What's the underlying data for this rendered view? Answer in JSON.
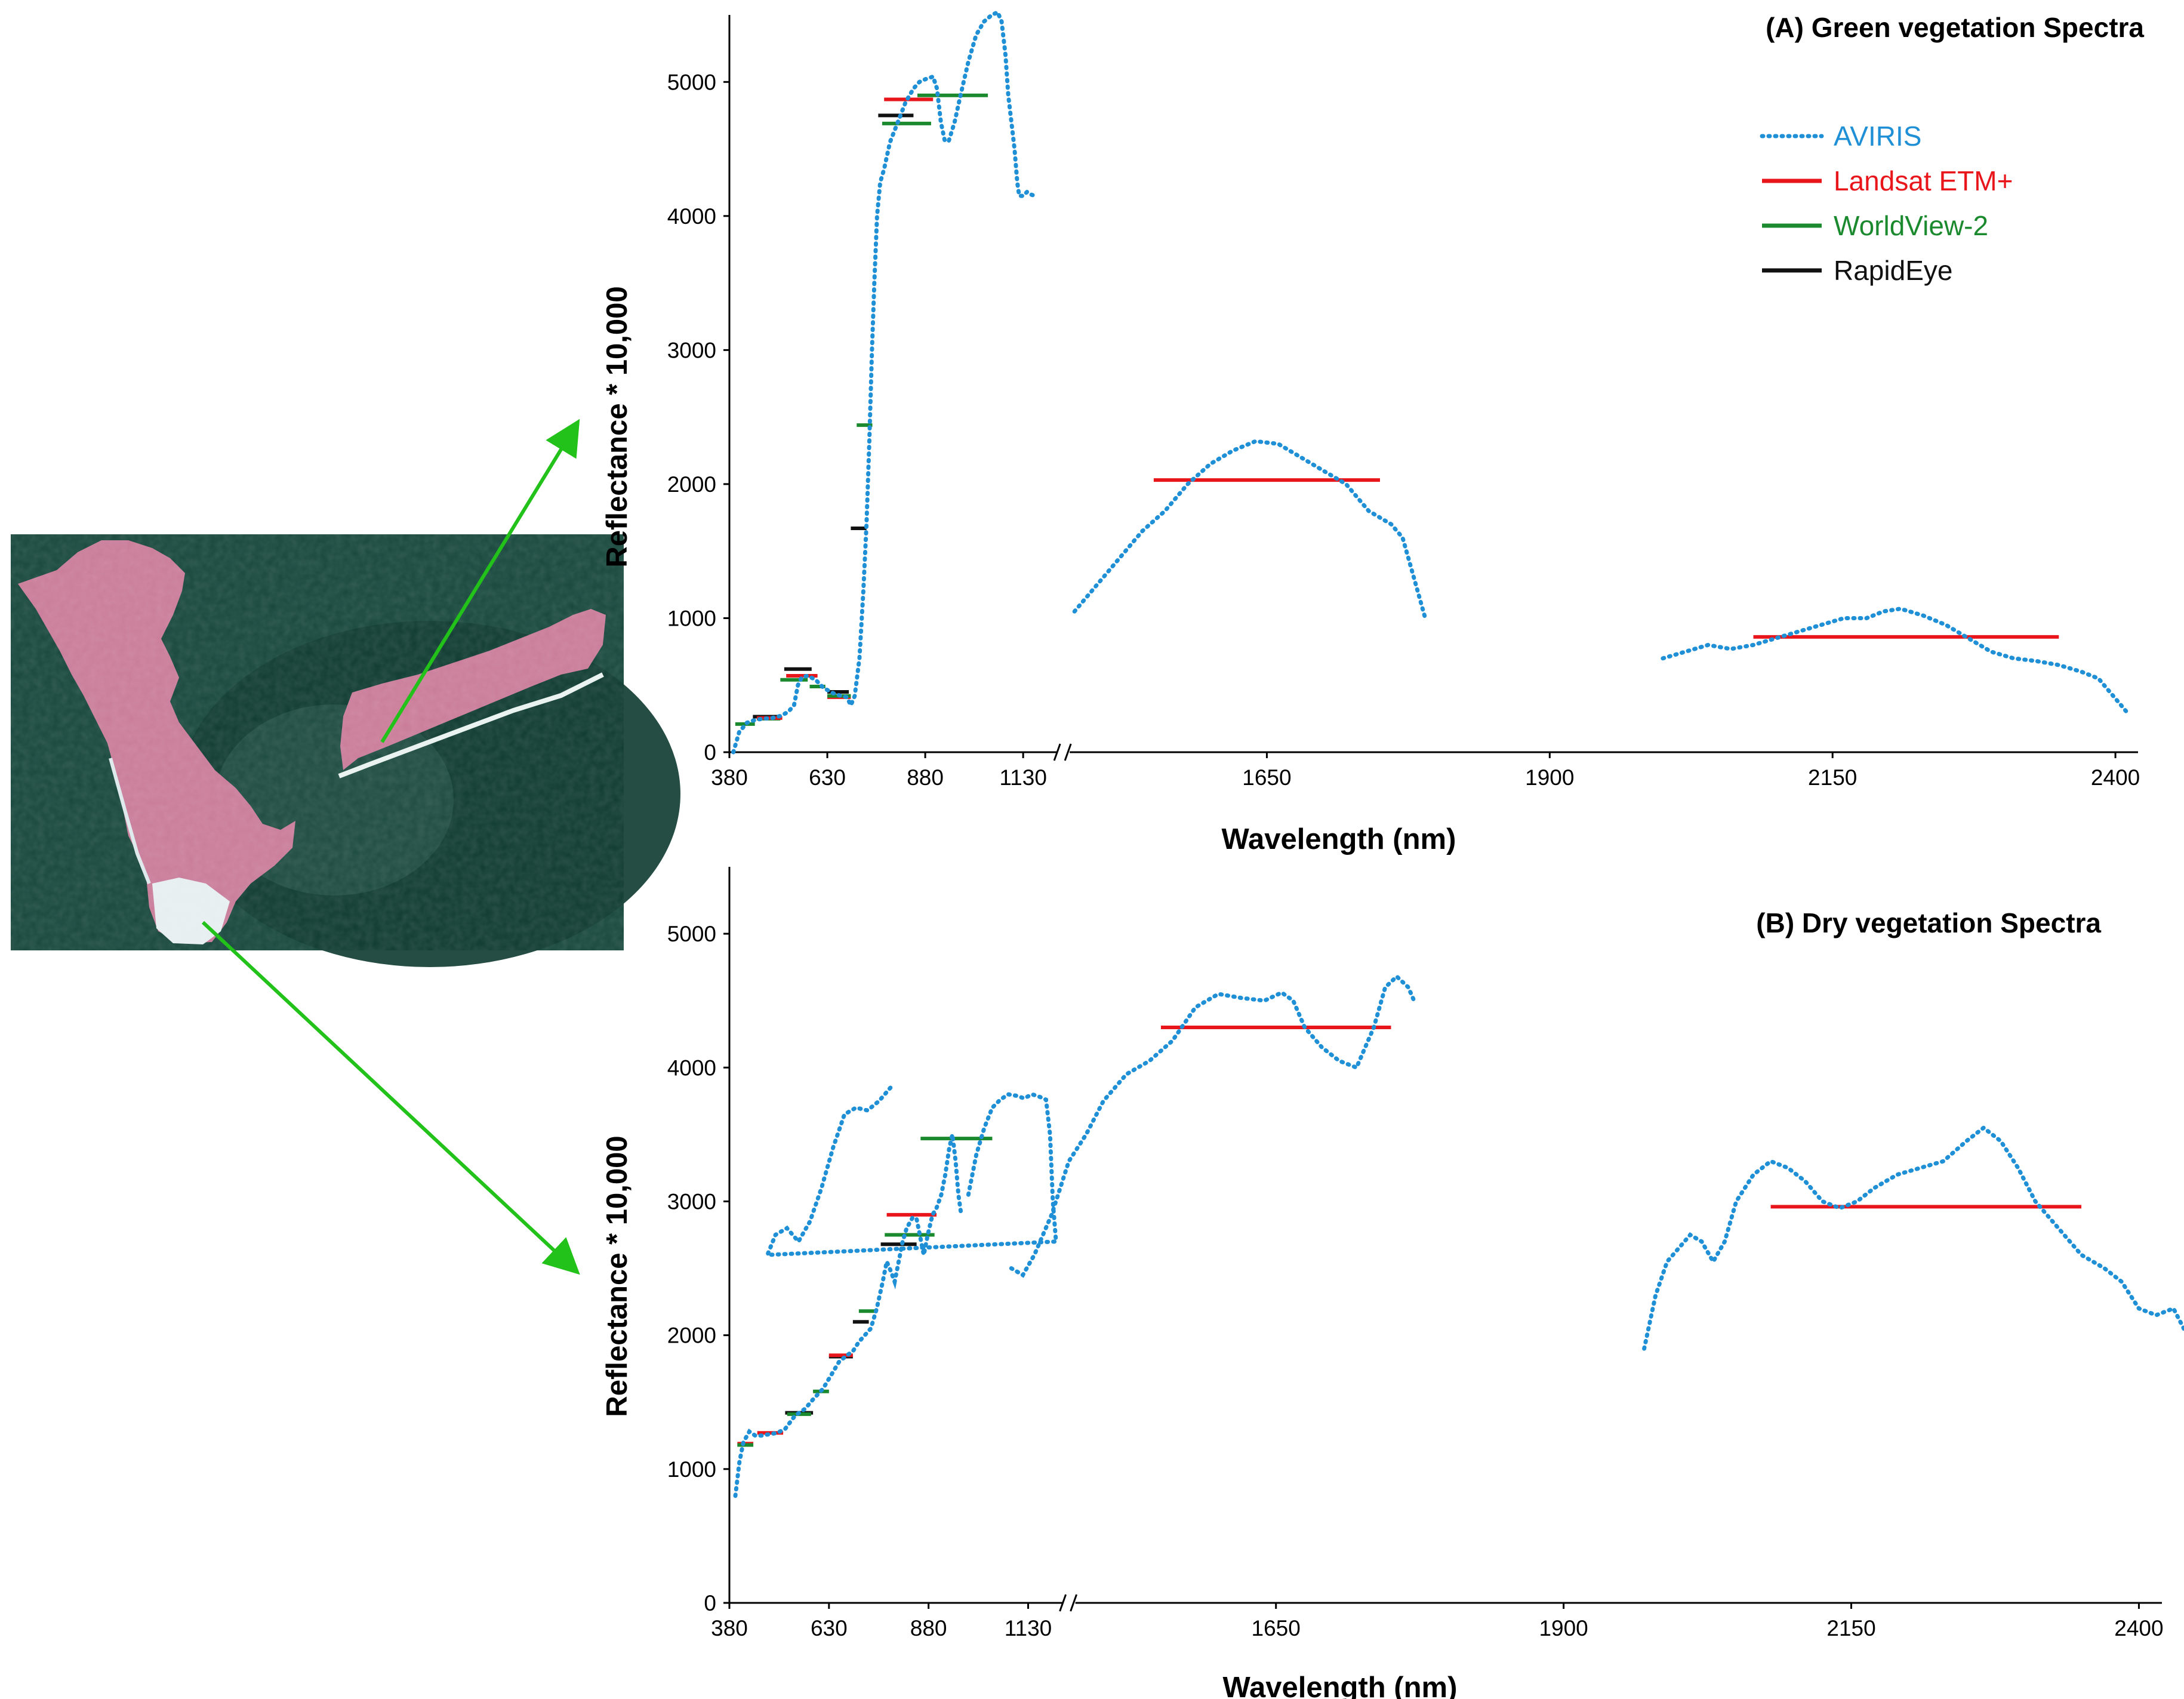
{
  "colors": {
    "aviris": "#1f8fd6",
    "landsat": "#e8161b",
    "worldview": "#1b8a2e",
    "rapideye": "#111111",
    "arrow": "#22c21a",
    "map_water": "#17473c",
    "map_land": "#c97b97"
  },
  "map_image": {
    "icon": "satellite-false-color-island-map"
  },
  "chart_data": [
    {
      "id": "A",
      "type": "line",
      "title": "(A) Green vegetation Spectra",
      "xlabel": "Wavelength (nm)",
      "ylabel": "Reflectance * 10,000",
      "ylim": [
        0,
        5500
      ],
      "yticks": [
        0,
        1000,
        2000,
        3000,
        4000,
        5000
      ],
      "xticks": [
        380,
        630,
        880,
        1130,
        1650,
        1900,
        2150,
        2400
      ],
      "x_axis_break": "between 1130 and 1650",
      "legend_position": "top-right",
      "legend": [
        {
          "label": "AVIRIS",
          "style": "dotted",
          "color_key": "aviris"
        },
        {
          "label": "Landsat ETM+",
          "style": "solid",
          "color_key": "landsat"
        },
        {
          "label": "WorldView-2",
          "style": "solid",
          "color_key": "worldview"
        },
        {
          "label": "RapidEye",
          "style": "solid",
          "color_key": "rapideye"
        }
      ],
      "aviris": [
        [
          [
            390,
            0
          ],
          [
            405,
            150
          ],
          [
            425,
            220
          ],
          [
            445,
            240
          ],
          [
            465,
            250
          ],
          [
            490,
            255
          ],
          [
            510,
            270
          ],
          [
            530,
            300
          ],
          [
            545,
            350
          ],
          [
            555,
            500
          ],
          [
            565,
            560
          ],
          [
            580,
            570
          ],
          [
            600,
            540
          ],
          [
            620,
            480
          ],
          [
            645,
            440
          ],
          [
            665,
            420
          ],
          [
            680,
            410
          ],
          [
            690,
            350
          ],
          [
            700,
            420
          ],
          [
            712,
            700
          ],
          [
            722,
            1200
          ],
          [
            730,
            1700
          ],
          [
            737,
            2300
          ],
          [
            744,
            3000
          ],
          [
            750,
            3500
          ],
          [
            757,
            4000
          ],
          [
            765,
            4250
          ],
          [
            775,
            4350
          ],
          [
            790,
            4550
          ],
          [
            810,
            4700
          ],
          [
            830,
            4850
          ],
          [
            850,
            4950
          ],
          [
            865,
            5000
          ],
          [
            880,
            5020
          ],
          [
            900,
            5040
          ],
          [
            910,
            4950
          ],
          [
            920,
            4700
          ],
          [
            930,
            4560
          ],
          [
            940,
            4560
          ],
          [
            955,
            4700
          ],
          [
            970,
            4900
          ],
          [
            990,
            5150
          ],
          [
            1010,
            5350
          ],
          [
            1030,
            5450
          ],
          [
            1050,
            5500
          ],
          [
            1065,
            5520
          ],
          [
            1075,
            5450
          ],
          [
            1085,
            5200
          ],
          [
            1092,
            4900
          ],
          [
            1100,
            4700
          ],
          [
            1108,
            4500
          ],
          [
            1115,
            4250
          ],
          [
            1120,
            4150
          ],
          [
            1130,
            4150
          ],
          [
            1140,
            4180
          ],
          [
            1150,
            4160
          ],
          [
            1160,
            4150
          ]
        ],
        [
          [
            1480,
            1050
          ],
          [
            1500,
            1250
          ],
          [
            1520,
            1450
          ],
          [
            1540,
            1650
          ],
          [
            1560,
            1800
          ],
          [
            1580,
            2000
          ],
          [
            1600,
            2150
          ],
          [
            1620,
            2250
          ],
          [
            1640,
            2320
          ],
          [
            1660,
            2300
          ],
          [
            1680,
            2200
          ],
          [
            1700,
            2100
          ],
          [
            1720,
            2000
          ],
          [
            1740,
            1800
          ],
          [
            1760,
            1700
          ],
          [
            1770,
            1600
          ],
          [
            1780,
            1300
          ],
          [
            1790,
            1000
          ]
        ],
        [
          [
            2000,
            700
          ],
          [
            2020,
            750
          ],
          [
            2040,
            800
          ],
          [
            2060,
            770
          ],
          [
            2080,
            800
          ],
          [
            2100,
            850
          ],
          [
            2120,
            900
          ],
          [
            2140,
            950
          ],
          [
            2160,
            1000
          ],
          [
            2180,
            1000
          ],
          [
            2195,
            1050
          ],
          [
            2210,
            1070
          ],
          [
            2230,
            1020
          ],
          [
            2250,
            950
          ],
          [
            2270,
            850
          ],
          [
            2290,
            750
          ],
          [
            2310,
            700
          ],
          [
            2330,
            680
          ],
          [
            2350,
            650
          ],
          [
            2370,
            600
          ],
          [
            2385,
            550
          ],
          [
            2395,
            450
          ],
          [
            2405,
            350
          ],
          [
            2410,
            300
          ]
        ]
      ],
      "bands": [
        {
          "sensor": "worldview",
          "x0": 395,
          "x1": 445,
          "y": 210
        },
        {
          "sensor": "rapideye",
          "x0": 440,
          "x1": 510,
          "y": 265
        },
        {
          "sensor": "worldview",
          "x0": 450,
          "x1": 510,
          "y": 250
        },
        {
          "sensor": "landsat",
          "x0": 450,
          "x1": 515,
          "y": 255
        },
        {
          "sensor": "rapideye",
          "x0": 520,
          "x1": 590,
          "y": 620
        },
        {
          "sensor": "landsat",
          "x0": 525,
          "x1": 605,
          "y": 570
        },
        {
          "sensor": "worldview",
          "x0": 510,
          "x1": 580,
          "y": 540
        },
        {
          "sensor": "worldview",
          "x0": 585,
          "x1": 625,
          "y": 490
        },
        {
          "sensor": "rapideye",
          "x0": 630,
          "x1": 685,
          "y": 450
        },
        {
          "sensor": "landsat",
          "x0": 630,
          "x1": 690,
          "y": 410
        },
        {
          "sensor": "worldview",
          "x0": 630,
          "x1": 690,
          "y": 420
        },
        {
          "sensor": "worldview",
          "x0": 705,
          "x1": 745,
          "y": 2440
        },
        {
          "sensor": "rapideye",
          "x0": 690,
          "x1": 730,
          "y": 1670
        },
        {
          "sensor": "rapideye",
          "x0": 760,
          "x1": 850,
          "y": 4750
        },
        {
          "sensor": "landsat",
          "x0": 775,
          "x1": 900,
          "y": 4870
        },
        {
          "sensor": "worldview",
          "x0": 770,
          "x1": 895,
          "y": 4690
        },
        {
          "sensor": "worldview",
          "x0": 860,
          "x1": 1040,
          "y": 4900
        },
        {
          "sensor": "landsat",
          "x0": 1550,
          "x1": 1750,
          "y": 2030
        },
        {
          "sensor": "landsat",
          "x0": 2080,
          "x1": 2350,
          "y": 860
        }
      ]
    },
    {
      "id": "B",
      "type": "line",
      "title": "(B) Dry vegetation Spectra",
      "xlabel": "Wavelength (nm)",
      "ylabel": "Reflectance * 10,000",
      "ylim": [
        0,
        5500
      ],
      "yticks": [
        0,
        1000,
        2000,
        3000,
        4000,
        5000
      ],
      "xticks": [
        380,
        630,
        880,
        1130,
        1650,
        1900,
        2150,
        2400
      ],
      "x_axis_break": "between 1130 and 1650",
      "aviris": [
        [
          [
            395,
            800
          ],
          [
            405,
            1050
          ],
          [
            415,
            1200
          ],
          [
            430,
            1280
          ],
          [
            445,
            1250
          ],
          [
            460,
            1250
          ],
          [
            480,
            1260
          ],
          [
            500,
            1270
          ],
          [
            520,
            1300
          ],
          [
            545,
            1400
          ],
          [
            570,
            1450
          ],
          [
            590,
            1520
          ],
          [
            615,
            1600
          ],
          [
            635,
            1700
          ],
          [
            655,
            1800
          ],
          [
            675,
            1850
          ],
          [
            690,
            1880
          ],
          [
            705,
            1950
          ],
          [
            720,
            2000
          ],
          [
            735,
            2050
          ],
          [
            750,
            2200
          ],
          [
            765,
            2400
          ],
          [
            775,
            2550
          ],
          [
            785,
            2480
          ],
          [
            795,
            2400
          ],
          [
            805,
            2550
          ],
          [
            815,
            2700
          ],
          [
            825,
            2800
          ],
          [
            840,
            2880
          ],
          [
            850,
            2870
          ],
          [
            858,
            2750
          ],
          [
            868,
            2600
          ],
          [
            878,
            2750
          ],
          [
            890,
            2900
          ],
          [
            900,
            2950
          ],
          [
            912,
            3050
          ],
          [
            922,
            3200
          ],
          [
            932,
            3400
          ],
          [
            940,
            3500
          ],
          [
            948,
            3300
          ],
          [
            955,
            3050
          ],
          [
            962,
            2900
          ]
        ],
        [
          [
            980,
            3050
          ],
          [
            1000,
            3350
          ],
          [
            1020,
            3550
          ],
          [
            1040,
            3700
          ],
          [
            1060,
            3760
          ],
          [
            1080,
            3800
          ],
          [
            1100,
            3790
          ],
          [
            1120,
            3770
          ],
          [
            1140,
            3800
          ],
          [
            1160,
            3780
          ],
          [
            1175,
            3760
          ],
          [
            1185,
            3500
          ],
          [
            1192,
            3000
          ],
          [
            1200,
            2700
          ],
          [
            1208,
            2600
          ],
          [
            1215,
            2750
          ],
          [
            1225,
            2800
          ],
          [
            1235,
            2700
          ],
          [
            1245,
            2850
          ],
          [
            1255,
            3100
          ],
          [
            1265,
            3400
          ],
          [
            1275,
            3650
          ],
          [
            1285,
            3700
          ],
          [
            1295,
            3680
          ],
          [
            1305,
            3750
          ],
          [
            1315,
            3850
          ]
        ],
        [
          [
            1420,
            2500
          ],
          [
            1430,
            2450
          ],
          [
            1440,
            2600
          ],
          [
            1455,
            2900
          ],
          [
            1470,
            3300
          ],
          [
            1485,
            3500
          ],
          [
            1500,
            3750
          ],
          [
            1520,
            3950
          ],
          [
            1540,
            4050
          ],
          [
            1560,
            4200
          ],
          [
            1580,
            4450
          ],
          [
            1600,
            4550
          ],
          [
            1620,
            4520
          ],
          [
            1640,
            4500
          ],
          [
            1655,
            4560
          ],
          [
            1665,
            4500
          ],
          [
            1675,
            4300
          ],
          [
            1690,
            4150
          ],
          [
            1705,
            4050
          ],
          [
            1720,
            4000
          ],
          [
            1735,
            4300
          ],
          [
            1745,
            4600
          ],
          [
            1755,
            4680
          ],
          [
            1765,
            4600
          ],
          [
            1770,
            4500
          ]
        ],
        [
          [
            1970,
            1900
          ],
          [
            1980,
            2300
          ],
          [
            1990,
            2550
          ],
          [
            2000,
            2650
          ],
          [
            2010,
            2750
          ],
          [
            2020,
            2700
          ],
          [
            2030,
            2550
          ],
          [
            2040,
            2700
          ],
          [
            2050,
            3000
          ],
          [
            2065,
            3200
          ],
          [
            2080,
            3300
          ],
          [
            2095,
            3250
          ],
          [
            2110,
            3150
          ],
          [
            2125,
            3000
          ],
          [
            2140,
            2950
          ],
          [
            2155,
            3000
          ],
          [
            2170,
            3100
          ],
          [
            2190,
            3200
          ],
          [
            2210,
            3250
          ],
          [
            2230,
            3300
          ],
          [
            2250,
            3450
          ],
          [
            2265,
            3550
          ],
          [
            2280,
            3450
          ],
          [
            2295,
            3250
          ],
          [
            2310,
            3000
          ],
          [
            2330,
            2800
          ],
          [
            2350,
            2600
          ],
          [
            2370,
            2500
          ],
          [
            2385,
            2400
          ],
          [
            2400,
            2200
          ],
          [
            2415,
            2150
          ],
          [
            2430,
            2200
          ],
          [
            2445,
            1950
          ],
          [
            2460,
            1900
          ],
          [
            2475,
            1850
          ],
          [
            2490,
            1650
          ],
          [
            2500,
            1550
          ]
        ]
      ],
      "bands": [
        {
          "sensor": "landsat",
          "x0": 400,
          "x1": 440,
          "y": 1190
        },
        {
          "sensor": "worldview",
          "x0": 400,
          "x1": 440,
          "y": 1180
        },
        {
          "sensor": "landsat",
          "x0": 450,
          "x1": 515,
          "y": 1270
        },
        {
          "sensor": "rapideye",
          "x0": 520,
          "x1": 590,
          "y": 1420
        },
        {
          "sensor": "worldview",
          "x0": 525,
          "x1": 585,
          "y": 1410
        },
        {
          "sensor": "worldview",
          "x0": 590,
          "x1": 630,
          "y": 1580
        },
        {
          "sensor": "rapideye",
          "x0": 630,
          "x1": 690,
          "y": 1840
        },
        {
          "sensor": "landsat",
          "x0": 630,
          "x1": 690,
          "y": 1850
        },
        {
          "sensor": "rapideye",
          "x0": 690,
          "x1": 730,
          "y": 2100
        },
        {
          "sensor": "worldview",
          "x0": 705,
          "x1": 745,
          "y": 2180
        },
        {
          "sensor": "rapideye",
          "x0": 760,
          "x1": 850,
          "y": 2680
        },
        {
          "sensor": "worldview",
          "x0": 770,
          "x1": 895,
          "y": 2750
        },
        {
          "sensor": "landsat",
          "x0": 775,
          "x1": 900,
          "y": 2900
        },
        {
          "sensor": "worldview",
          "x0": 860,
          "x1": 1040,
          "y": 3470
        },
        {
          "sensor": "landsat",
          "x0": 1550,
          "x1": 1750,
          "y": 4300
        },
        {
          "sensor": "landsat",
          "x0": 2080,
          "x1": 2350,
          "y": 2960
        }
      ]
    }
  ]
}
